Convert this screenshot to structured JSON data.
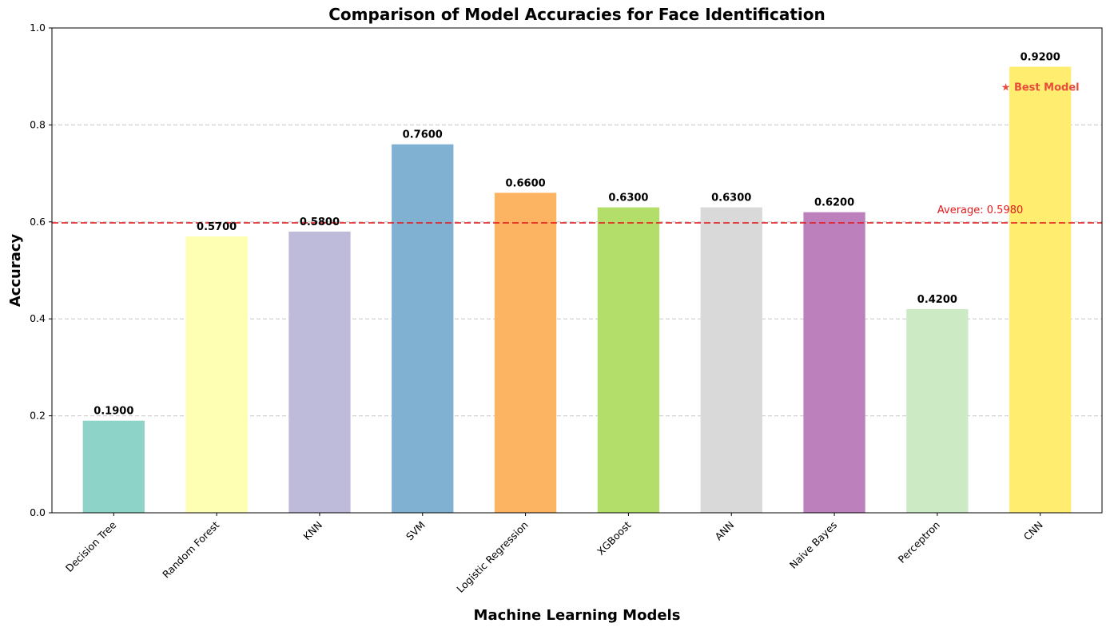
{
  "chart_data": {
    "type": "bar",
    "title": "Comparison of Model Accuracies for Face Identification",
    "xlabel": "Machine Learning Models",
    "ylabel": "Accuracy",
    "ylim": [
      0,
      1.0
    ],
    "yticks": [
      "0.0",
      "0.2",
      "0.4",
      "0.6",
      "0.8",
      "1.0"
    ],
    "grid": "y-dashed",
    "categories": [
      "Decision Tree",
      "Random Forest",
      "KNN",
      "SVM",
      "Logistic Regression",
      "XGBoost",
      "ANN",
      "Naive Bayes",
      "Perceptron",
      "CNN"
    ],
    "values": [
      0.19,
      0.57,
      0.58,
      0.76,
      0.66,
      0.63,
      0.63,
      0.62,
      0.42,
      0.92
    ],
    "value_labels": [
      "0.1900",
      "0.5700",
      "0.5800",
      "0.7600",
      "0.6600",
      "0.6300",
      "0.6300",
      "0.6200",
      "0.4200",
      "0.9200"
    ],
    "colors": [
      "#8dd3c7",
      "#ffffb3",
      "#bebada",
      "#80b1d3",
      "#fdb462",
      "#b3de69",
      "#d9d9d9",
      "#bc80bd",
      "#ccebc5",
      "#ffed6f"
    ],
    "average": {
      "value": 0.598,
      "label": "Average: 0.5980",
      "color": "#e41a1c"
    },
    "best": {
      "category": "CNN",
      "label": "★ Best Model",
      "color": "#e74c3c"
    }
  }
}
